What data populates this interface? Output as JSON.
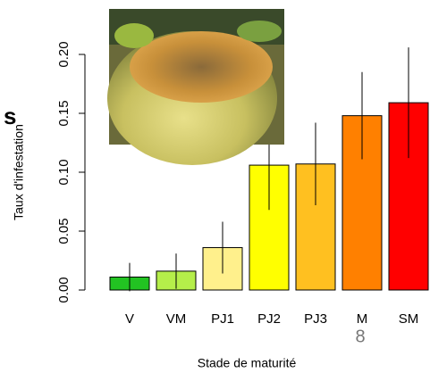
{
  "chart_data": {
    "type": "bar",
    "y_label": "Taux d'infestation",
    "x_label": "Stade de maturité",
    "categories": [
      "V",
      "VM",
      "PJ1",
      "PJ2",
      "PJ3",
      "M",
      "SM"
    ],
    "values": [
      0.011,
      0.016,
      0.036,
      0.106,
      0.107,
      0.148,
      0.159
    ],
    "errors": [
      0.012,
      0.015,
      0.022,
      0.038,
      0.035,
      0.037,
      0.047
    ],
    "colors": [
      "#22c322",
      "#b5ee4a",
      "#fff08c",
      "#ffff00",
      "#ffc020",
      "#ff8000",
      "#ff0000"
    ],
    "ylim": [
      0,
      0.2
    ],
    "yticks": [
      {
        "value": 0,
        "label": "0.00"
      },
      {
        "value": 0.05,
        "label": "0.05"
      },
      {
        "value": 0.1,
        "label": "0.10"
      },
      {
        "value": 0.15,
        "label": "0.15"
      },
      {
        "value": 0.2,
        "label": "0.20"
      }
    ],
    "annotations": [
      "s",
      "8"
    ]
  }
}
